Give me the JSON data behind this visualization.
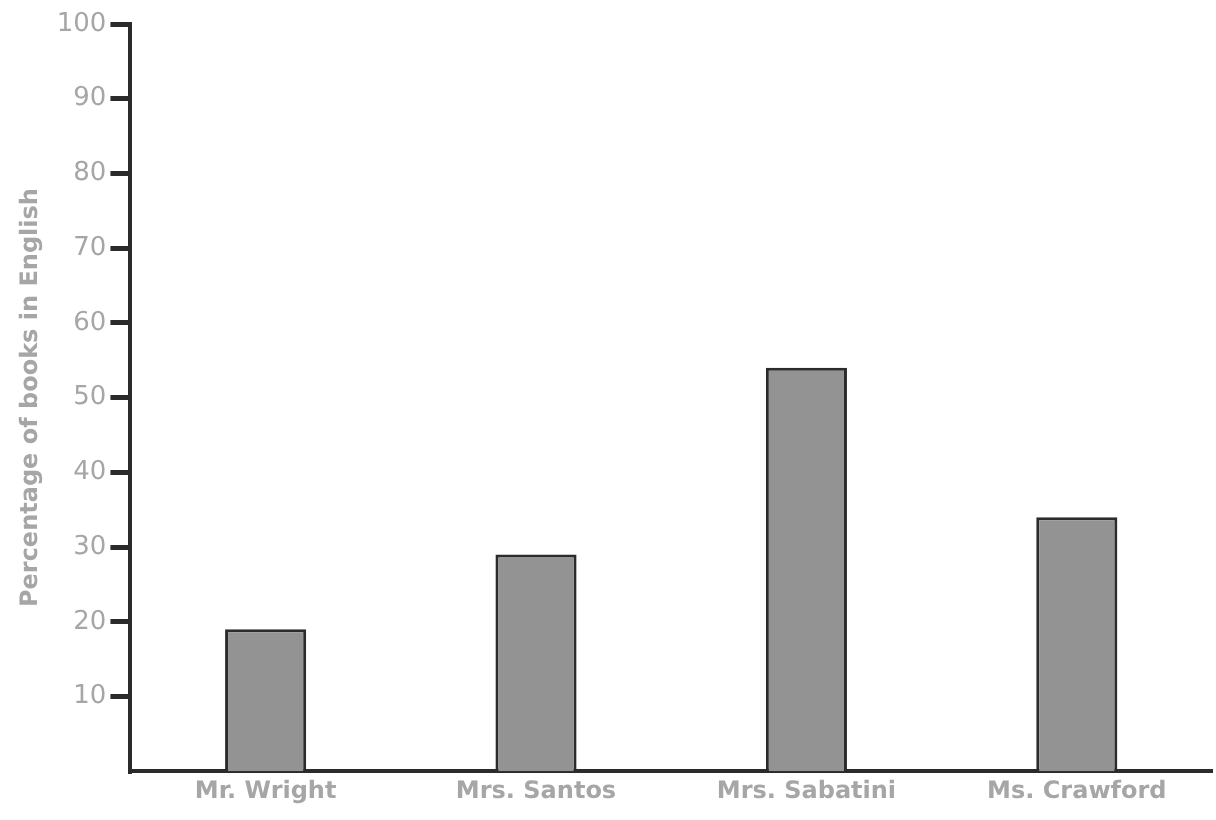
{
  "chart_data": {
    "type": "bar",
    "ylabel": "Percentage of books in English",
    "categories": [
      "Mr. Wright",
      "Mrs. Santos",
      "Mrs. Sabatini",
      "Ms. Crawford"
    ],
    "values": [
      19,
      29,
      54,
      34
    ],
    "color": "#939393",
    "ylim": [
      0,
      100
    ],
    "yticks": [
      10,
      20,
      30,
      40,
      50,
      60,
      70,
      80,
      90,
      100
    ],
    "grid": false,
    "legend": false
  }
}
